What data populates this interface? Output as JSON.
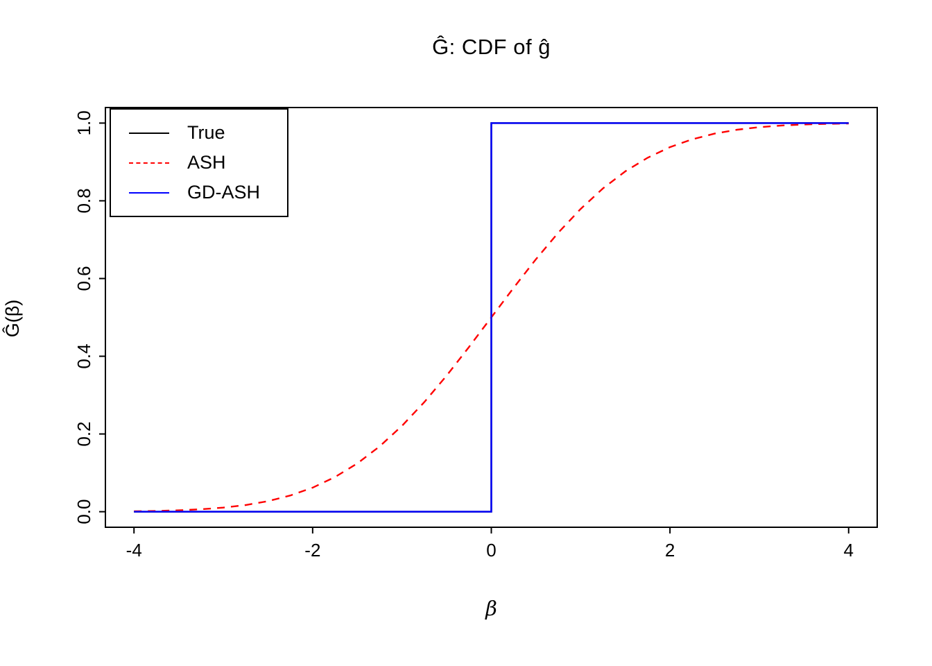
{
  "chart_data": {
    "type": "line",
    "title": "Ĝ: CDF of ĝ",
    "xlabel": "β",
    "ylabel": "Ĝ(β)",
    "xlim": [
      -4,
      4
    ],
    "ylim": [
      0.0,
      1.0
    ],
    "x_ticks": [
      "-4",
      "-2",
      "0",
      "2",
      "4"
    ],
    "y_ticks": [
      "0.0",
      "0.2",
      "0.4",
      "0.6",
      "0.8",
      "1.0"
    ],
    "grid": false,
    "background": "#FFFFFF",
    "legend": {
      "position": "top-left",
      "entries": [
        {
          "label": "True",
          "color": "#000000",
          "dash": "solid"
        },
        {
          "label": "ASH",
          "color": "#FF0000",
          "dash": "dashed"
        },
        {
          "label": "GD-ASH",
          "color": "#0000FF",
          "dash": "solid"
        }
      ]
    },
    "series": [
      {
        "name": "True",
        "color": "#000000",
        "dash": "solid",
        "x": [
          -4,
          0,
          0,
          4
        ],
        "y": [
          0,
          0,
          1,
          1
        ]
      },
      {
        "name": "ASH",
        "color": "#FF0000",
        "dash": "dashed",
        "x": [
          -4,
          -3.75,
          -3.5,
          -3.25,
          -3,
          -2.75,
          -2.5,
          -2.25,
          -2,
          -1.75,
          -1.5,
          -1.25,
          -1,
          -0.75,
          -0.5,
          -0.25,
          0,
          0.25,
          0.5,
          0.75,
          1,
          1.25,
          1.5,
          1.75,
          2,
          2.25,
          2.5,
          2.75,
          3,
          3.25,
          3.5,
          3.75,
          4
        ],
        "y": [
          0.001,
          0.002,
          0.0036,
          0.0062,
          0.0105,
          0.0172,
          0.0272,
          0.0418,
          0.062,
          0.0892,
          0.1243,
          0.1681,
          0.2209,
          0.282,
          0.3502,
          0.4238,
          0.5,
          0.5762,
          0.6498,
          0.718,
          0.7791,
          0.8319,
          0.8757,
          0.9108,
          0.938,
          0.9582,
          0.9728,
          0.9828,
          0.9895,
          0.9938,
          0.9964,
          0.998,
          0.999
        ]
      },
      {
        "name": "GD-ASH",
        "color": "#0000FF",
        "dash": "solid",
        "x": [
          -4,
          0,
          0,
          4
        ],
        "y": [
          0,
          0,
          1,
          1
        ]
      }
    ]
  }
}
